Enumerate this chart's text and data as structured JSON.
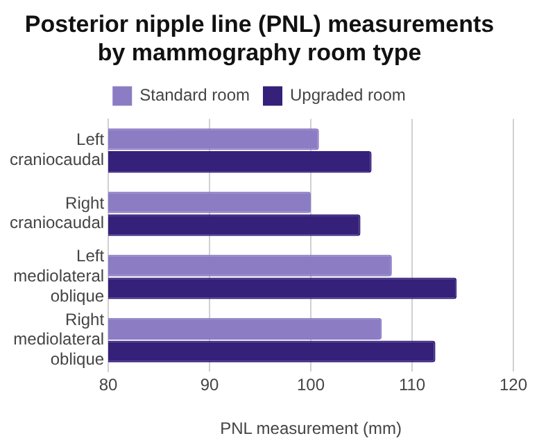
{
  "chart_data": {
    "type": "bar",
    "orientation": "horizontal",
    "title": "Posterior nipple line (PNL) measurements by mammography room type",
    "xlabel": "PNL measurement (mm)",
    "categories": [
      "Left craniocaudal",
      "Right craniocaudal",
      "Left mediolateral oblique",
      "Right mediolateral oblique"
    ],
    "series": [
      {
        "name": "Standard room",
        "color": "#8b7cc4",
        "values": [
          100.8,
          100.0,
          108.0,
          107.0
        ]
      },
      {
        "name": "Upgraded room",
        "color": "#35207a",
        "values": [
          106.0,
          104.9,
          114.4,
          112.3
        ]
      }
    ],
    "xlim": [
      80,
      120
    ],
    "xticks": [
      80,
      90,
      100,
      110,
      120
    ],
    "grid": "x",
    "legend": "top"
  }
}
